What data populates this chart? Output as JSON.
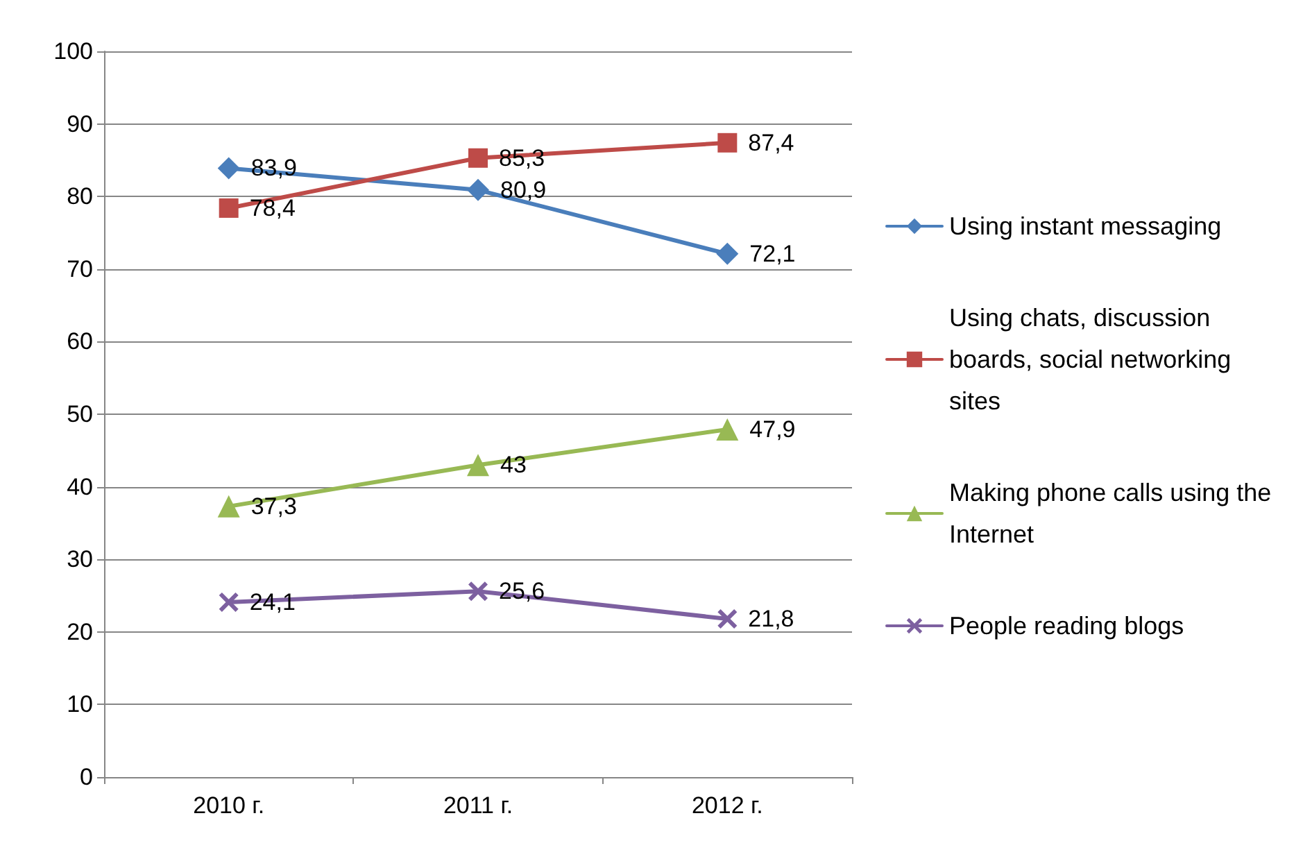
{
  "chart_data": {
    "type": "line",
    "categories": [
      "2010 г.",
      "2011 г.",
      "2012 г."
    ],
    "series": [
      {
        "name": "Using instant messaging",
        "color": "#4a7ebb",
        "marker": "diamond",
        "values": [
          83.9,
          80.9,
          72.1
        ],
        "value_labels": [
          "83,9",
          "80,9",
          "72,1"
        ]
      },
      {
        "name": "Using chats, discussion boards, social networking sites",
        "color": "#be4b48",
        "marker": "square",
        "values": [
          78.4,
          85.3,
          87.4
        ],
        "value_labels": [
          "78,4",
          "85,3",
          "87,4"
        ]
      },
      {
        "name": "Making phone calls using the Internet",
        "color": "#98b954",
        "marker": "triangle",
        "values": [
          37.3,
          43,
          47.9
        ],
        "value_labels": [
          "37,3",
          "43",
          "47,9"
        ]
      },
      {
        "name": "People reading blogs",
        "color": "#7d60a0",
        "marker": "cross",
        "values": [
          24.1,
          25.6,
          21.8
        ],
        "value_labels": [
          "24,1",
          "25,6",
          "21,8"
        ]
      }
    ],
    "ylim": [
      0,
      100
    ],
    "yticks": [
      0,
      10,
      20,
      30,
      40,
      50,
      60,
      70,
      80,
      90,
      100
    ],
    "grid": "y",
    "legend": "right",
    "line_style": "solid"
  }
}
